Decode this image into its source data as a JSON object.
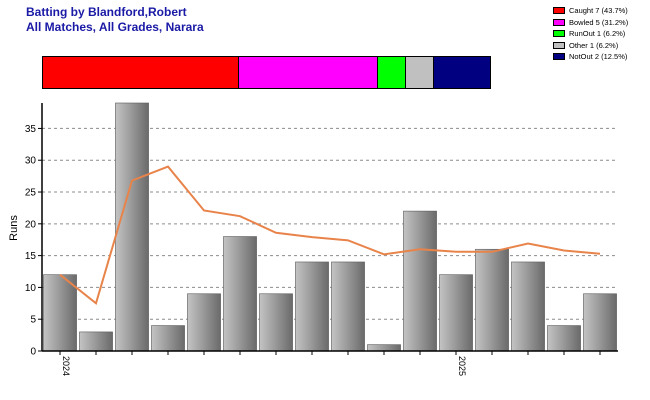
{
  "header": {
    "title_line1": "Batting by Blandford,Robert",
    "title_line2": "All Matches, All Grades, Narara"
  },
  "legend": {
    "items": [
      {
        "label": "Caught 7 (43.7%)",
        "color": "#ff0000",
        "count": 7
      },
      {
        "label": "Bowled 5 (31.2%)",
        "color": "#ff00ff",
        "count": 5
      },
      {
        "label": "RunOut 1 (6.2%)",
        "color": "#00ff00",
        "count": 1
      },
      {
        "label": "Other 1 (6.2%)",
        "color": "#c0c0c0",
        "count": 1
      },
      {
        "label": "NotOut 2 (12.5%)",
        "color": "#000080",
        "count": 2
      }
    ]
  },
  "chart_data": {
    "type": "bar",
    "ylabel": "Runs",
    "ylim": [
      0,
      39
    ],
    "yticks": [
      0,
      5,
      10,
      15,
      20,
      25,
      30,
      35
    ],
    "grid": true,
    "x_labels": [
      {
        "index": 0,
        "label": "2024"
      },
      {
        "index": 11,
        "label": "2025"
      }
    ],
    "series": [
      {
        "type": "bar",
        "values": [
          12,
          3,
          39,
          4,
          9,
          18,
          9,
          14,
          14,
          1,
          22,
          12,
          16,
          14,
          4,
          9
        ],
        "color": "#9a9a9a"
      },
      {
        "type": "line",
        "values": [
          12,
          7.5,
          26.8,
          29,
          22.1,
          21.2,
          18.6,
          17.9,
          17.4,
          15.2,
          16,
          15.6,
          15.6,
          16.9,
          15.8,
          15.3
        ],
        "color": "#e8834a"
      }
    ]
  }
}
